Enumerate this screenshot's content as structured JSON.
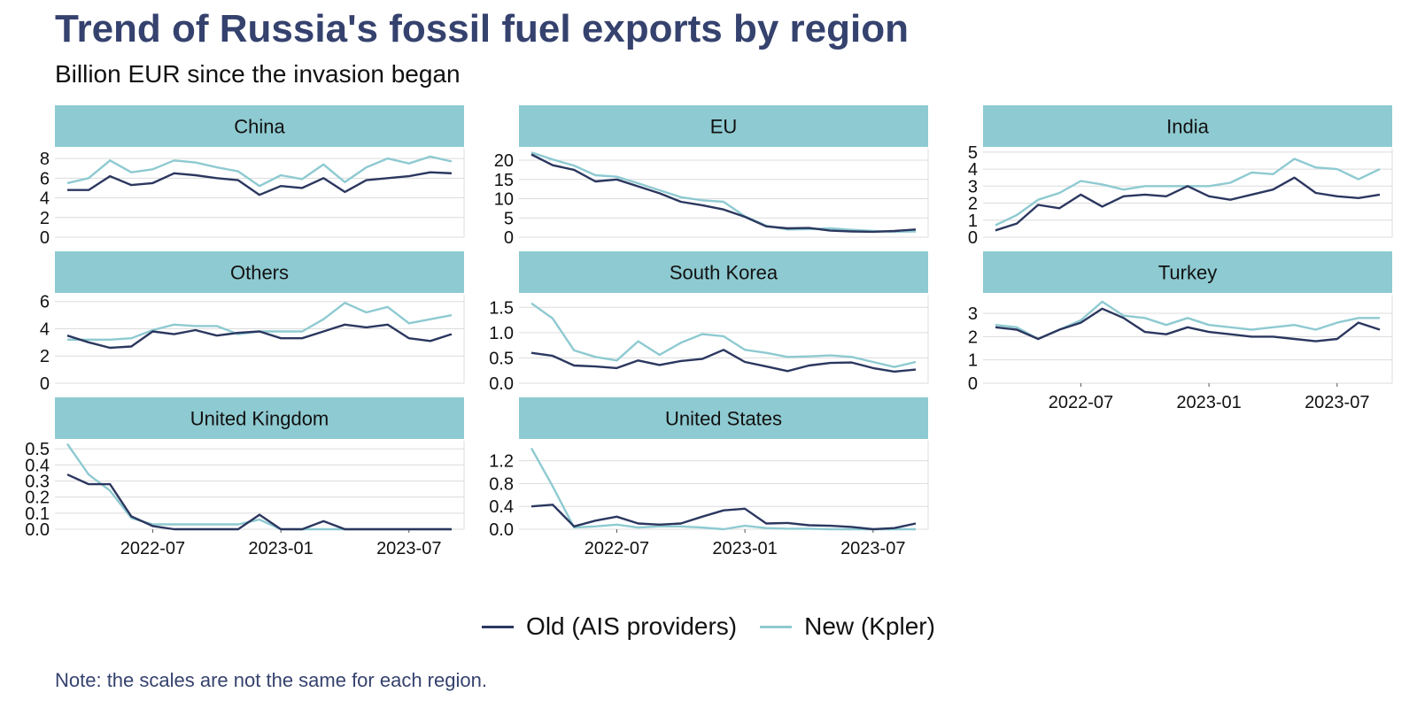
{
  "title": "Trend of Russia's fossil fuel exports by region",
  "subtitle": "Billion EUR since the invasion began",
  "note": "Note: the scales are not the same for each region.",
  "colors": {
    "old": "#2b375f",
    "new": "#8ecad1",
    "strip": "#8ecad1",
    "title": "#35426e",
    "grid": "#dcdcdc"
  },
  "legend": [
    {
      "label": "Old (AIS providers)",
      "color": "#2b375f"
    },
    {
      "label": "New (Kpler)",
      "color": "#8ecad1"
    }
  ],
  "chart_data": {
    "type": "line",
    "facet": "small-multiples",
    "x": [
      "2022-03",
      "2022-04",
      "2022-05",
      "2022-06",
      "2022-07",
      "2022-08",
      "2022-09",
      "2022-10",
      "2022-11",
      "2022-12",
      "2023-01",
      "2023-02",
      "2023-03",
      "2023-04",
      "2023-05",
      "2023-06",
      "2023-07",
      "2023-08",
      "2023-09"
    ],
    "x_ticks": [
      {
        "value": "2022-07",
        "label": "2022-07"
      },
      {
        "value": "2023-01",
        "label": "2023-01"
      },
      {
        "value": "2023-07",
        "label": "2023-07"
      }
    ],
    "series_names": [
      "Old (AIS providers)",
      "New (Kpler)"
    ],
    "panels": [
      {
        "name": "China",
        "ylim": [
          0,
          9
        ],
        "yticks": [
          {
            "v": 0,
            "l": "0"
          },
          {
            "v": 2,
            "l": "2"
          },
          {
            "v": 4,
            "l": "4"
          },
          {
            "v": 6,
            "l": "6"
          },
          {
            "v": 8,
            "l": "8"
          }
        ],
        "old": [
          4.8,
          4.8,
          6.2,
          5.3,
          5.5,
          6.5,
          6.3,
          6.0,
          5.8,
          4.3,
          5.2,
          5.0,
          6.0,
          4.6,
          5.8,
          6.0,
          6.2,
          6.6,
          6.5
        ],
        "new": [
          5.5,
          6.0,
          7.8,
          6.6,
          6.9,
          7.8,
          7.6,
          7.1,
          6.7,
          5.2,
          6.3,
          5.9,
          7.4,
          5.6,
          7.1,
          8.0,
          7.5,
          8.2,
          7.7
        ]
      },
      {
        "name": "EU",
        "ylim": [
          0,
          23
        ],
        "yticks": [
          {
            "v": 0,
            "l": "0"
          },
          {
            "v": 5,
            "l": "5"
          },
          {
            "v": 10,
            "l": "10"
          },
          {
            "v": 15,
            "l": "15"
          },
          {
            "v": 20,
            "l": "20"
          }
        ],
        "old": [
          21.5,
          18.7,
          17.5,
          14.5,
          15.0,
          13.2,
          11.4,
          9.2,
          8.3,
          7.2,
          5.3,
          2.8,
          2.3,
          2.4,
          1.7,
          1.5,
          1.4,
          1.6,
          2.0
        ],
        "new": [
          22.0,
          20.2,
          18.6,
          16.1,
          15.7,
          14.0,
          12.2,
          10.4,
          9.6,
          9.2,
          5.4,
          3.0,
          2.0,
          2.1,
          2.3,
          1.9,
          1.6,
          1.4,
          1.5
        ]
      },
      {
        "name": "India",
        "ylim": [
          0,
          5.2
        ],
        "yticks": [
          {
            "v": 0,
            "l": "0"
          },
          {
            "v": 1,
            "l": "1"
          },
          {
            "v": 2,
            "l": "2"
          },
          {
            "v": 3,
            "l": "3"
          },
          {
            "v": 4,
            "l": "4"
          },
          {
            "v": 5,
            "l": "5"
          }
        ],
        "old": [
          0.4,
          0.8,
          1.9,
          1.7,
          2.5,
          1.8,
          2.4,
          2.5,
          2.4,
          3.0,
          2.4,
          2.2,
          2.5,
          2.8,
          3.5,
          2.6,
          2.4,
          2.3,
          2.5
        ],
        "new": [
          0.7,
          1.3,
          2.2,
          2.6,
          3.3,
          3.1,
          2.8,
          3.0,
          3.0,
          3.0,
          3.0,
          3.2,
          3.8,
          3.7,
          4.6,
          4.1,
          4.0,
          3.4,
          4.0
        ]
      },
      {
        "name": "Others",
        "ylim": [
          0,
          6.5
        ],
        "yticks": [
          {
            "v": 0,
            "l": "0"
          },
          {
            "v": 2,
            "l": "2"
          },
          {
            "v": 4,
            "l": "4"
          },
          {
            "v": 6,
            "l": "6"
          }
        ],
        "old": [
          3.5,
          3.0,
          2.6,
          2.7,
          3.8,
          3.6,
          3.9,
          3.5,
          3.7,
          3.8,
          3.3,
          3.3,
          3.8,
          4.3,
          4.1,
          4.3,
          3.3,
          3.1,
          3.6
        ],
        "new": [
          3.2,
          3.2,
          3.2,
          3.3,
          3.9,
          4.3,
          4.2,
          4.2,
          3.6,
          3.8,
          3.8,
          3.8,
          4.7,
          5.9,
          5.2,
          5.6,
          4.4,
          4.7,
          5.0
        ]
      },
      {
        "name": "South Korea",
        "ylim": [
          0,
          1.75
        ],
        "yticks": [
          {
            "v": 0,
            "l": "0.0"
          },
          {
            "v": 0.5,
            "l": "0.5"
          },
          {
            "v": 1.0,
            "l": "1.0"
          },
          {
            "v": 1.5,
            "l": "1.5"
          }
        ],
        "old": [
          0.6,
          0.54,
          0.35,
          0.33,
          0.3,
          0.45,
          0.36,
          0.44,
          0.48,
          0.66,
          0.42,
          0.33,
          0.24,
          0.35,
          0.4,
          0.41,
          0.3,
          0.23,
          0.27
        ],
        "new": [
          1.58,
          1.28,
          0.65,
          0.52,
          0.45,
          0.83,
          0.56,
          0.8,
          0.97,
          0.93,
          0.66,
          0.6,
          0.52,
          0.53,
          0.55,
          0.52,
          0.42,
          0.32,
          0.42
        ]
      },
      {
        "name": "Turkey",
        "ylim": [
          0,
          3.8
        ],
        "yticks": [
          {
            "v": 0,
            "l": "0"
          },
          {
            "v": 1,
            "l": "1"
          },
          {
            "v": 2,
            "l": "2"
          },
          {
            "v": 3,
            "l": "3"
          }
        ],
        "old": [
          2.4,
          2.3,
          1.9,
          2.3,
          2.6,
          3.2,
          2.8,
          2.2,
          2.1,
          2.4,
          2.2,
          2.1,
          2.0,
          2.0,
          1.9,
          1.8,
          1.9,
          2.6,
          2.3
        ],
        "new": [
          2.5,
          2.4,
          1.9,
          2.3,
          2.7,
          3.5,
          2.9,
          2.8,
          2.5,
          2.8,
          2.5,
          2.4,
          2.3,
          2.4,
          2.5,
          2.3,
          2.6,
          2.8,
          2.8
        ]
      },
      {
        "name": "United Kingdom",
        "ylim": [
          0,
          0.55
        ],
        "yticks": [
          {
            "v": 0,
            "l": "0.0"
          },
          {
            "v": 0.1,
            "l": "0.1"
          },
          {
            "v": 0.2,
            "l": "0.2"
          },
          {
            "v": 0.3,
            "l": "0.3"
          },
          {
            "v": 0.4,
            "l": "0.4"
          },
          {
            "v": 0.5,
            "l": "0.5"
          }
        ],
        "old": [
          0.34,
          0.28,
          0.28,
          0.08,
          0.02,
          0.0,
          0.0,
          0.0,
          0.0,
          0.09,
          0.0,
          0.0,
          0.05,
          0.0,
          0.0,
          0.0,
          0.0,
          0.0,
          0.0
        ],
        "new": [
          0.53,
          0.34,
          0.24,
          0.07,
          0.03,
          0.03,
          0.03,
          0.03,
          0.03,
          0.06,
          0.0,
          0.0,
          0.0,
          0.0,
          0.0,
          0.0,
          0.0,
          0.0,
          0.0
        ]
      },
      {
        "name": "United States",
        "ylim": [
          0,
          1.55
        ],
        "yticks": [
          {
            "v": 0,
            "l": "0.0"
          },
          {
            "v": 0.4,
            "l": "0.4"
          },
          {
            "v": 0.8,
            "l": "0.8"
          },
          {
            "v": 1.2,
            "l": "1.2"
          }
        ],
        "old": [
          0.4,
          0.43,
          0.05,
          0.15,
          0.22,
          0.1,
          0.08,
          0.1,
          0.22,
          0.33,
          0.36,
          0.1,
          0.11,
          0.07,
          0.06,
          0.04,
          0.0,
          0.02,
          0.1
        ],
        "new": [
          1.42,
          0.75,
          0.03,
          0.05,
          0.08,
          0.03,
          0.05,
          0.05,
          0.03,
          0.0,
          0.06,
          0.02,
          0.01,
          0.01,
          0.0,
          0.0,
          0.0,
          0.0,
          0.0
        ]
      }
    ]
  }
}
